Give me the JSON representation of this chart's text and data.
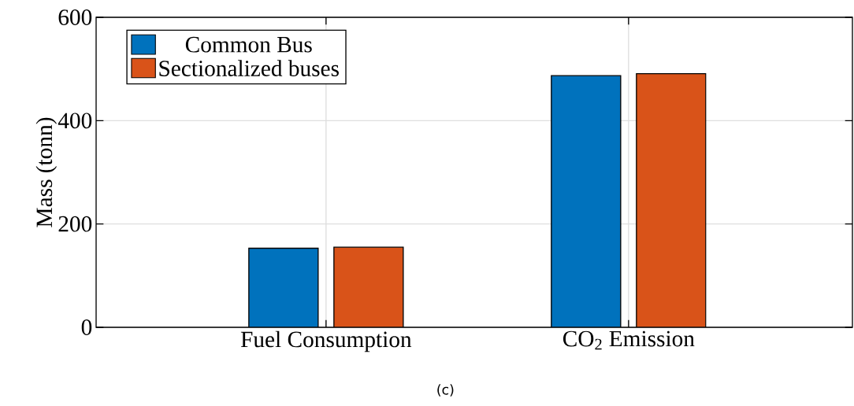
{
  "chart_data": {
    "type": "bar",
    "ylabel": "Mass (tonn)",
    "categories": [
      "Fuel Consumption",
      "CO$_{2}$ Emission"
    ],
    "series": [
      {
        "name": "Common Bus",
        "color": "#0072bd",
        "values": [
          153,
          487
        ]
      },
      {
        "name": "Sectionalized buses",
        "color": "#d95319",
        "values": [
          155,
          491
        ]
      }
    ],
    "ylim": [
      0,
      600
    ],
    "yticks": [
      0,
      200,
      400,
      600
    ],
    "grid": true,
    "legend": "top left",
    "annotations": [
      "(c)"
    ]
  }
}
